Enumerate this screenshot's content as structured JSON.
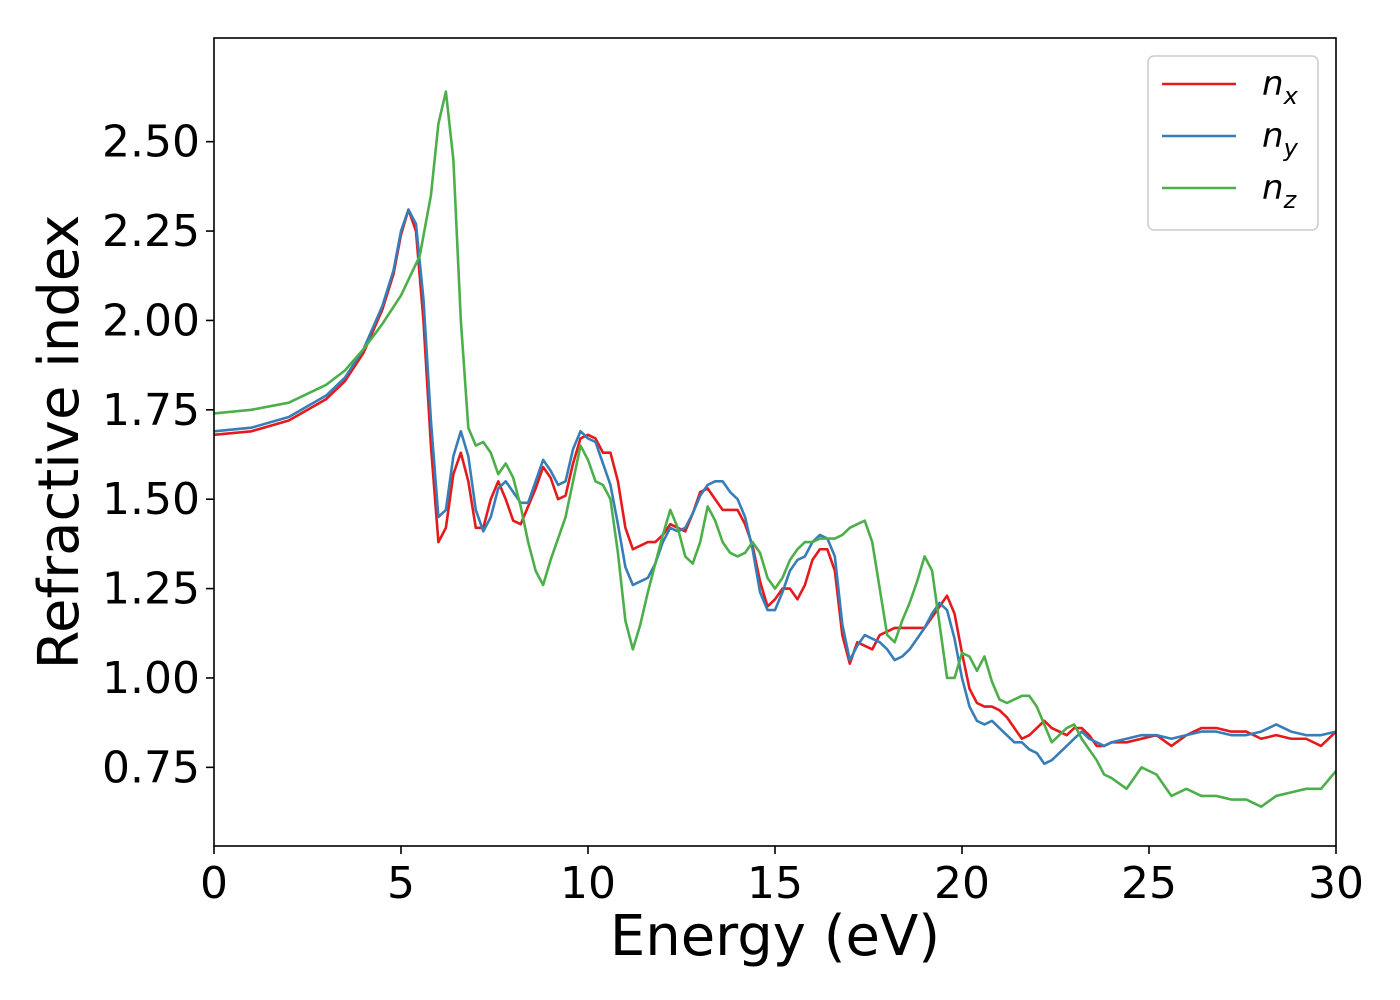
{
  "chart_data": {
    "type": "line",
    "title": "",
    "xlabel": "Energy (eV)",
    "ylabel": "Refractive index",
    "xlim": [
      0,
      30
    ],
    "ylim": [
      0.53,
      2.79
    ],
    "xticks": [
      0,
      5,
      10,
      15,
      20,
      25,
      30
    ],
    "xtick_labels": [
      "0",
      "5",
      "10",
      "15",
      "20",
      "25",
      "30"
    ],
    "yticks": [
      0.75,
      1.0,
      1.25,
      1.5,
      1.75,
      2.0,
      2.25,
      2.5
    ],
    "ytick_labels": [
      "0.75",
      "1.00",
      "1.25",
      "1.50",
      "1.75",
      "2.00",
      "2.25",
      "2.50"
    ],
    "grid": false,
    "legend_position": "top-right",
    "series": [
      {
        "name": "n",
        "sub": "x",
        "color": "#e41a1c",
        "x": [
          0,
          1,
          2,
          3,
          3.5,
          4,
          4.5,
          4.8,
          5.0,
          5.2,
          5.4,
          5.6,
          5.8,
          6.0,
          6.2,
          6.4,
          6.6,
          6.8,
          7.0,
          7.2,
          7.4,
          7.6,
          7.8,
          8.0,
          8.2,
          8.4,
          8.6,
          8.8,
          9.0,
          9.2,
          9.4,
          9.6,
          9.8,
          10.0,
          10.2,
          10.4,
          10.6,
          10.8,
          11.0,
          11.2,
          11.4,
          11.6,
          11.8,
          12.0,
          12.2,
          12.4,
          12.6,
          12.8,
          13.0,
          13.2,
          13.4,
          13.6,
          13.8,
          14.0,
          14.2,
          14.4,
          14.6,
          14.8,
          15.0,
          15.2,
          15.4,
          15.6,
          15.8,
          16.0,
          16.2,
          16.4,
          16.6,
          16.8,
          17.0,
          17.2,
          17.4,
          17.6,
          17.8,
          18.0,
          18.2,
          18.4,
          18.6,
          18.8,
          19.0,
          19.2,
          19.4,
          19.6,
          19.8,
          20.0,
          20.2,
          20.4,
          20.6,
          20.8,
          21.0,
          21.2,
          21.4,
          21.6,
          21.8,
          22.0,
          22.2,
          22.4,
          22.6,
          22.8,
          23.0,
          23.2,
          23.4,
          23.6,
          23.8,
          24.0,
          24.4,
          24.8,
          25.2,
          25.6,
          26.0,
          26.4,
          26.8,
          27.2,
          27.6,
          28.0,
          28.4,
          28.8,
          29.2,
          29.6,
          30.0
        ],
        "y": [
          1.68,
          1.69,
          1.72,
          1.78,
          1.83,
          1.91,
          2.03,
          2.13,
          2.24,
          2.31,
          2.25,
          2.0,
          1.65,
          1.38,
          1.42,
          1.57,
          1.63,
          1.55,
          1.42,
          1.42,
          1.5,
          1.55,
          1.5,
          1.44,
          1.43,
          1.48,
          1.53,
          1.59,
          1.56,
          1.5,
          1.51,
          1.6,
          1.67,
          1.68,
          1.67,
          1.63,
          1.63,
          1.55,
          1.42,
          1.36,
          1.37,
          1.38,
          1.38,
          1.4,
          1.43,
          1.42,
          1.41,
          1.46,
          1.52,
          1.53,
          1.5,
          1.47,
          1.47,
          1.47,
          1.43,
          1.37,
          1.27,
          1.2,
          1.22,
          1.25,
          1.25,
          1.22,
          1.26,
          1.33,
          1.36,
          1.36,
          1.3,
          1.12,
          1.04,
          1.1,
          1.09,
          1.08,
          1.12,
          1.13,
          1.14,
          1.14,
          1.14,
          1.14,
          1.14,
          1.17,
          1.2,
          1.23,
          1.18,
          1.07,
          0.97,
          0.93,
          0.92,
          0.92,
          0.91,
          0.89,
          0.86,
          0.83,
          0.84,
          0.86,
          0.88,
          0.86,
          0.85,
          0.84,
          0.86,
          0.86,
          0.84,
          0.81,
          0.81,
          0.82,
          0.82,
          0.83,
          0.84,
          0.81,
          0.84,
          0.86,
          0.86,
          0.85,
          0.85,
          0.83,
          0.84,
          0.83,
          0.83,
          0.81,
          0.85
        ]
      },
      {
        "name": "n",
        "sub": "y",
        "color": "#377eb8",
        "x": [
          0,
          1,
          2,
          3,
          3.5,
          4,
          4.5,
          4.8,
          5.0,
          5.2,
          5.4,
          5.6,
          5.8,
          6.0,
          6.2,
          6.4,
          6.6,
          6.8,
          7.0,
          7.2,
          7.4,
          7.6,
          7.8,
          8.0,
          8.2,
          8.4,
          8.6,
          8.8,
          9.0,
          9.2,
          9.4,
          9.6,
          9.8,
          10.0,
          10.2,
          10.4,
          10.6,
          10.8,
          11.0,
          11.2,
          11.4,
          11.6,
          11.8,
          12.0,
          12.2,
          12.4,
          12.6,
          12.8,
          13.0,
          13.2,
          13.4,
          13.6,
          13.8,
          14.0,
          14.2,
          14.4,
          14.6,
          14.8,
          15.0,
          15.2,
          15.4,
          15.6,
          15.8,
          16.0,
          16.2,
          16.4,
          16.6,
          16.8,
          17.0,
          17.2,
          17.4,
          17.6,
          17.8,
          18.0,
          18.2,
          18.4,
          18.6,
          18.8,
          19.0,
          19.2,
          19.4,
          19.6,
          19.8,
          20.0,
          20.2,
          20.4,
          20.6,
          20.8,
          21.0,
          21.2,
          21.4,
          21.6,
          21.8,
          22.0,
          22.2,
          22.4,
          22.6,
          22.8,
          23.0,
          23.2,
          23.4,
          23.6,
          23.8,
          24.0,
          24.4,
          24.8,
          25.2,
          25.6,
          26.0,
          26.4,
          26.8,
          27.2,
          27.6,
          28.0,
          28.4,
          28.8,
          29.2,
          29.6,
          30.0
        ],
        "y": [
          1.69,
          1.7,
          1.73,
          1.79,
          1.84,
          1.92,
          2.04,
          2.14,
          2.25,
          2.31,
          2.27,
          2.06,
          1.72,
          1.45,
          1.47,
          1.62,
          1.69,
          1.62,
          1.47,
          1.41,
          1.45,
          1.53,
          1.55,
          1.52,
          1.49,
          1.49,
          1.55,
          1.61,
          1.58,
          1.54,
          1.55,
          1.64,
          1.69,
          1.67,
          1.66,
          1.6,
          1.54,
          1.43,
          1.31,
          1.26,
          1.27,
          1.28,
          1.32,
          1.38,
          1.42,
          1.41,
          1.42,
          1.46,
          1.51,
          1.54,
          1.55,
          1.55,
          1.52,
          1.5,
          1.45,
          1.36,
          1.24,
          1.19,
          1.19,
          1.24,
          1.3,
          1.33,
          1.34,
          1.38,
          1.4,
          1.39,
          1.34,
          1.15,
          1.05,
          1.09,
          1.12,
          1.11,
          1.1,
          1.08,
          1.05,
          1.06,
          1.08,
          1.11,
          1.14,
          1.18,
          1.21,
          1.19,
          1.11,
          1.0,
          0.92,
          0.88,
          0.87,
          0.88,
          0.86,
          0.84,
          0.82,
          0.82,
          0.8,
          0.79,
          0.76,
          0.77,
          0.79,
          0.81,
          0.83,
          0.85,
          0.83,
          0.82,
          0.81,
          0.82,
          0.83,
          0.84,
          0.84,
          0.83,
          0.84,
          0.85,
          0.85,
          0.84,
          0.84,
          0.85,
          0.87,
          0.85,
          0.84,
          0.84,
          0.85
        ]
      },
      {
        "name": "n",
        "sub": "z",
        "color": "#4daf4a",
        "x": [
          0,
          1,
          2,
          3,
          3.5,
          4,
          4.5,
          5.0,
          5.5,
          5.8,
          6.0,
          6.2,
          6.4,
          6.6,
          6.8,
          7.0,
          7.2,
          7.4,
          7.6,
          7.8,
          8.0,
          8.2,
          8.4,
          8.6,
          8.8,
          9.0,
          9.2,
          9.4,
          9.6,
          9.8,
          10.0,
          10.2,
          10.4,
          10.6,
          10.8,
          11.0,
          11.2,
          11.4,
          11.6,
          11.8,
          12.0,
          12.2,
          12.4,
          12.6,
          12.8,
          13.0,
          13.2,
          13.4,
          13.6,
          13.8,
          14.0,
          14.2,
          14.4,
          14.6,
          14.8,
          15.0,
          15.2,
          15.4,
          15.6,
          15.8,
          16.0,
          16.2,
          16.4,
          16.6,
          16.8,
          17.0,
          17.2,
          17.4,
          17.6,
          17.8,
          18.0,
          18.2,
          18.4,
          18.6,
          18.8,
          19.0,
          19.2,
          19.4,
          19.6,
          19.8,
          20.0,
          20.2,
          20.4,
          20.6,
          20.8,
          21.0,
          21.2,
          21.4,
          21.6,
          21.8,
          22.0,
          22.2,
          22.4,
          22.6,
          22.8,
          23.0,
          23.2,
          23.4,
          23.6,
          23.8,
          24.0,
          24.4,
          24.8,
          25.2,
          25.6,
          26.0,
          26.4,
          26.8,
          27.2,
          27.6,
          28.0,
          28.4,
          28.8,
          29.2,
          29.6,
          30.0
        ],
        "y": [
          1.74,
          1.75,
          1.77,
          1.82,
          1.86,
          1.92,
          1.99,
          2.07,
          2.18,
          2.35,
          2.55,
          2.64,
          2.45,
          2.0,
          1.7,
          1.65,
          1.66,
          1.63,
          1.57,
          1.6,
          1.56,
          1.48,
          1.38,
          1.3,
          1.26,
          1.33,
          1.39,
          1.45,
          1.55,
          1.65,
          1.61,
          1.55,
          1.54,
          1.5,
          1.35,
          1.16,
          1.08,
          1.15,
          1.24,
          1.32,
          1.4,
          1.47,
          1.42,
          1.34,
          1.32,
          1.38,
          1.48,
          1.44,
          1.38,
          1.35,
          1.34,
          1.35,
          1.38,
          1.35,
          1.28,
          1.25,
          1.28,
          1.33,
          1.36,
          1.38,
          1.38,
          1.39,
          1.39,
          1.39,
          1.4,
          1.42,
          1.43,
          1.44,
          1.38,
          1.25,
          1.12,
          1.1,
          1.16,
          1.21,
          1.27,
          1.34,
          1.3,
          1.15,
          1.0,
          1.0,
          1.07,
          1.06,
          1.02,
          1.06,
          0.99,
          0.94,
          0.93,
          0.94,
          0.95,
          0.95,
          0.92,
          0.87,
          0.82,
          0.84,
          0.86,
          0.87,
          0.83,
          0.8,
          0.77,
          0.73,
          0.72,
          0.69,
          0.75,
          0.73,
          0.67,
          0.69,
          0.67,
          0.67,
          0.66,
          0.66,
          0.64,
          0.67,
          0.68,
          0.69,
          0.69,
          0.74
        ]
      }
    ]
  }
}
